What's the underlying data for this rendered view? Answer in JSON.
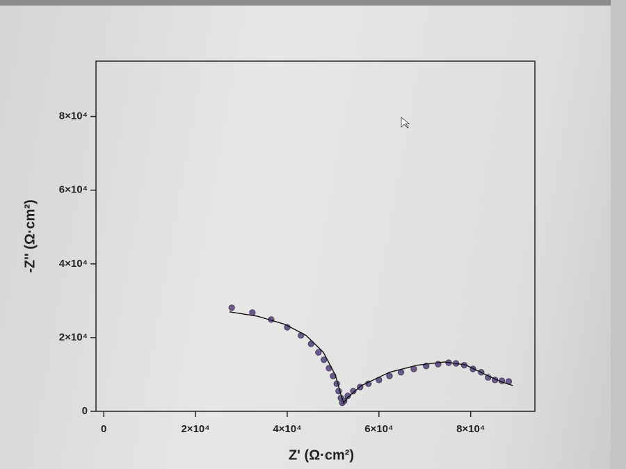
{
  "chart_data": {
    "type": "scatter",
    "xlabel": "Z' (Ω·cm²)",
    "ylabel": "-Z'' (Ω·cm²)",
    "xlim": [
      -1700,
      94000
    ],
    "ylim": [
      0,
      95000
    ],
    "xticks": [
      0,
      {
        "value": 20000,
        "label": "2×10⁴"
      },
      {
        "value": 40000,
        "label": "4×10⁴"
      },
      {
        "value": 60000,
        "label": "6×10⁴"
      },
      {
        "value": 80000,
        "label": "8×10⁴"
      }
    ],
    "yticks": [
      0,
      {
        "value": 20000,
        "label": "2×10⁴"
      },
      {
        "value": 40000,
        "label": "4×10⁴"
      },
      {
        "value": 60000,
        "label": "6×10⁴"
      },
      {
        "value": 80000,
        "label": "8×10⁴"
      }
    ],
    "series": [
      {
        "type": "scatter",
        "color": "#6b5b8c",
        "x": [
          27900,
          32400,
          36500,
          40000,
          43000,
          45200,
          46800,
          48000,
          49100,
          50000,
          50800,
          51200,
          51700,
          52000,
          52400,
          53200,
          54400,
          55900,
          57700,
          60000,
          62300,
          64800,
          67600,
          70300,
          72900,
          75200,
          76800,
          78600,
          80500,
          82300,
          83800,
          85300,
          86800,
          88300
        ],
        "values": [
          28100,
          26800,
          24900,
          22800,
          20600,
          18300,
          16000,
          14000,
          11700,
          9600,
          7500,
          5500,
          3600,
          2300,
          2800,
          4200,
          5500,
          6600,
          7500,
          8500,
          9600,
          10600,
          11500,
          12300,
          12800,
          13200,
          13000,
          12500,
          11500,
          10600,
          9200,
          8500,
          8300,
          8100
        ]
      },
      {
        "type": "line",
        "color": "#111111",
        "x": [
          27400,
          33500,
          39500,
          44100,
          47900,
          50500,
          51700,
          52300,
          53200,
          56200,
          62300,
          68300,
          74400,
          78900,
          83500,
          86500,
          89200
        ],
        "values": [
          27000,
          25800,
          23600,
          20600,
          16000,
          9800,
          4500,
          2300,
          3800,
          7000,
          10600,
          12500,
          13400,
          12600,
          9800,
          8100,
          7000
        ]
      }
    ]
  }
}
